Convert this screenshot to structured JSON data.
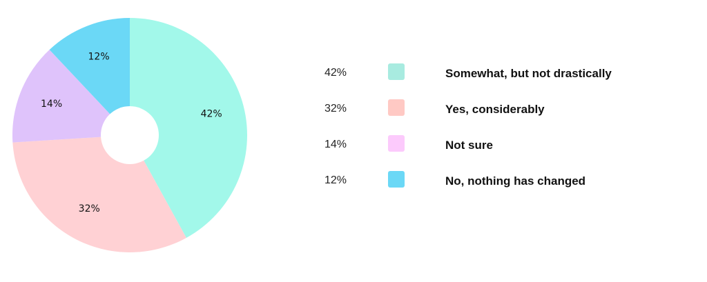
{
  "chart_data": {
    "type": "pie",
    "title": "",
    "slices": [
      {
        "label": "Somewhat, but not drastically",
        "value": 42,
        "display": "42%",
        "color": "#a2f8ea",
        "legend_color": "#a8ebe0"
      },
      {
        "label": "Yes, considerably",
        "value": 32,
        "display": "32%",
        "color": "#ffd1d4",
        "legend_color": "#ffc9c4"
      },
      {
        "label": "Not sure",
        "value": 14,
        "display": "14%",
        "color": "#dfc3fb",
        "legend_color": "#fccafc"
      },
      {
        "label": "No, nothing has changed",
        "value": 12,
        "display": "12%",
        "color": "#6bd8f6",
        "legend_color": "#6bd8f6"
      }
    ],
    "legend_position": "right"
  }
}
